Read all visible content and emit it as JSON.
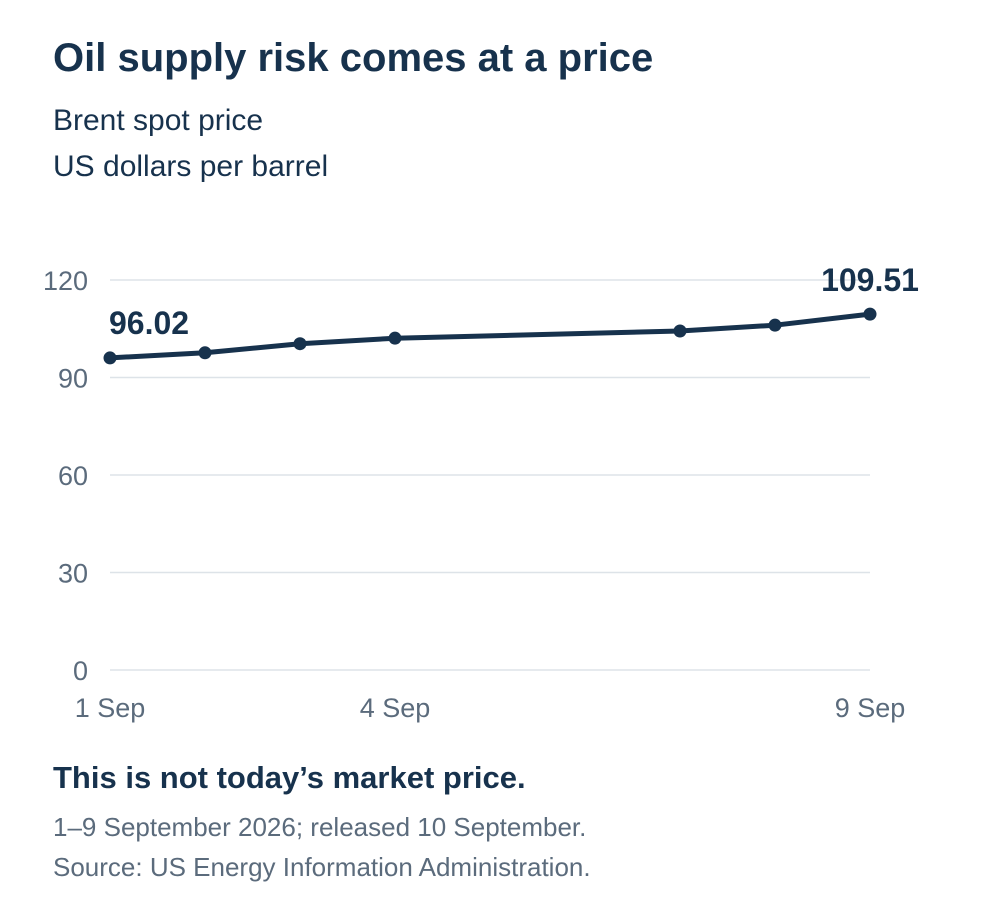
{
  "header": {
    "title": "Oil supply risk comes at a price",
    "subtitle_1": "Brent spot price",
    "subtitle_2": "US dollars per barrel"
  },
  "footer": {
    "note": "This is not today’s market price.",
    "dates": "1–9 September 2026; released 10 September.",
    "source": "Source: US Energy Information Administration."
  },
  "colors": {
    "line": "#17324d",
    "grid": "#dde3e8",
    "tick": "#5b6b7c"
  },
  "chart_data": {
    "type": "line",
    "x": [
      "2026-09-01",
      "2026-09-02",
      "2026-09-03",
      "2026-09-04",
      "2026-09-07",
      "2026-09-08",
      "2026-09-09"
    ],
    "series": [
      {
        "values": [
          96.02,
          97.6,
          100.4,
          102.1,
          104.3,
          106.1,
          109.51
        ]
      }
    ],
    "xticks": [
      {
        "x": "2026-09-01",
        "label": "1 Sep"
      },
      {
        "x": "2026-09-04",
        "label": "4 Sep"
      },
      {
        "x": "2026-09-09",
        "label": "9 Sep"
      }
    ],
    "yticks": [
      0,
      30,
      60,
      90,
      120
    ],
    "ylim": [
      0,
      120
    ],
    "xlim": [
      "2026-09-01",
      "2026-09-09"
    ],
    "grid": true,
    "data_labels": [
      {
        "x": "2026-09-01",
        "text": "96.02"
      },
      {
        "x": "2026-09-09",
        "text": "109.51"
      }
    ]
  }
}
